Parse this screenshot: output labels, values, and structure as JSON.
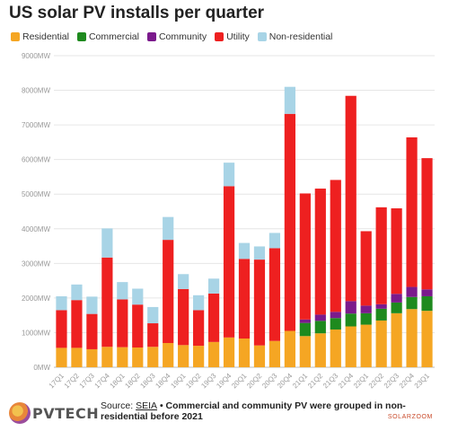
{
  "chart_data": {
    "type": "bar",
    "stacked": true,
    "title": "US solar PV installs per quarter",
    "categories": [
      "17Q1",
      "17Q2",
      "17Q3",
      "17Q4",
      "18Q1",
      "18Q2",
      "18Q3",
      "18Q4",
      "19Q1",
      "19Q2",
      "19Q3",
      "19Q4",
      "20Q1",
      "20Q2",
      "20Q3",
      "20Q4",
      "21Q1",
      "21Q2",
      "21Q3",
      "21Q4",
      "22Q1",
      "22Q2",
      "22Q3",
      "22Q4",
      "23Q1"
    ],
    "y_ticks": [
      "0MW",
      "1000MW",
      "2000MW",
      "3000MW",
      "4000MW",
      "5000MW",
      "6000MW",
      "7000MW",
      "8000MW",
      "9000MW"
    ],
    "ylim": [
      0,
      9000
    ],
    "grid": true,
    "legend_position": "top",
    "series": [
      {
        "name": "Residential",
        "color": "#f5a623",
        "values": [
          560,
          560,
          520,
          590,
          580,
          570,
          590,
          700,
          640,
          620,
          730,
          860,
          830,
          630,
          760,
          1050,
          900,
          980,
          1090,
          1180,
          1230,
          1350,
          1560,
          1680,
          1630
        ]
      },
      {
        "name": "Commercial",
        "color": "#1e8a1e",
        "values": [
          0,
          0,
          0,
          0,
          0,
          0,
          0,
          0,
          0,
          0,
          0,
          0,
          0,
          0,
          0,
          0,
          380,
          360,
          330,
          370,
          330,
          340,
          310,
          350,
          420
        ]
      },
      {
        "name": "Community",
        "color": "#7b1a8c",
        "values": [
          0,
          0,
          0,
          0,
          0,
          0,
          0,
          0,
          0,
          0,
          0,
          0,
          0,
          0,
          0,
          0,
          100,
          180,
          180,
          360,
          220,
          130,
          250,
          290,
          200
        ]
      },
      {
        "name": "Utility",
        "color": "#ee2020",
        "values": [
          1090,
          1380,
          1020,
          2580,
          1380,
          1240,
          680,
          2980,
          1620,
          1030,
          1400,
          4370,
          2300,
          2480,
          2680,
          6270,
          3640,
          3640,
          3810,
          5930,
          2150,
          2800,
          2470,
          4320,
          3790
        ]
      },
      {
        "name": "Non-residential",
        "color": "#a8d4e6",
        "values": [
          400,
          450,
          500,
          840,
          500,
          460,
          470,
          660,
          430,
          430,
          430,
          680,
          460,
          380,
          440,
          780,
          0,
          0,
          0,
          0,
          0,
          0,
          0,
          0,
          0
        ]
      }
    ]
  },
  "footer": {
    "logo_text": "PVTECH",
    "source_label": "Source:",
    "source_name": "SEIA",
    "source_note": " • Commercial and community PV were grouped in non-residential before 2021",
    "watermark": "SOLARZOOM"
  }
}
